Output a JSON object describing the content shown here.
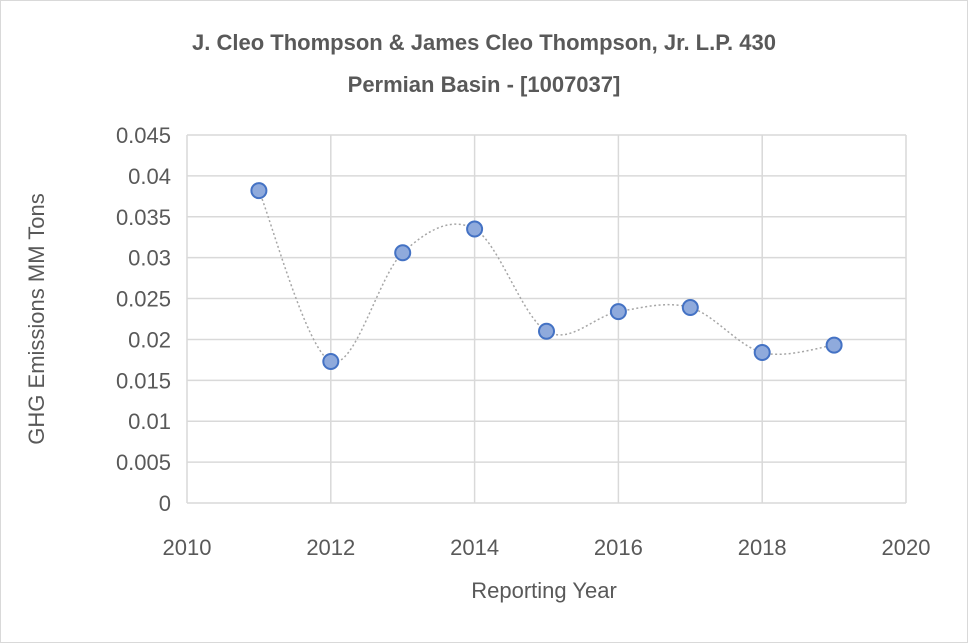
{
  "chart_data": {
    "type": "scatter",
    "title_lines": [
      "J. Cleo Thompson & James Cleo Thompson, Jr. L.P. 430",
      "Permian Basin - [1007037]"
    ],
    "xlabel": "Reporting Year",
    "ylabel": "GHG Emissions MM Tons",
    "xlim": [
      2010,
      2020
    ],
    "ylim": [
      0,
      0.045
    ],
    "xticks": [
      "2010",
      "2012",
      "2014",
      "2016",
      "2018",
      "2020"
    ],
    "yticks": [
      "0",
      "0.005",
      "0.01",
      "0.015",
      "0.02",
      "0.025",
      "0.03",
      "0.035",
      "0.04",
      "0.045"
    ],
    "grid": true,
    "smoothed_dotted_line": true,
    "marker_color": "#8faadc",
    "marker_edge_color": "#4472c4",
    "line_color": "#a6a6a6",
    "series": [
      {
        "x": [
          2011,
          2012,
          2013,
          2014,
          2015,
          2016,
          2017,
          2018,
          2019
        ],
        "y": [
          0.0382,
          0.0173,
          0.0306,
          0.0335,
          0.021,
          0.0234,
          0.0239,
          0.0184,
          0.0193
        ]
      }
    ]
  }
}
